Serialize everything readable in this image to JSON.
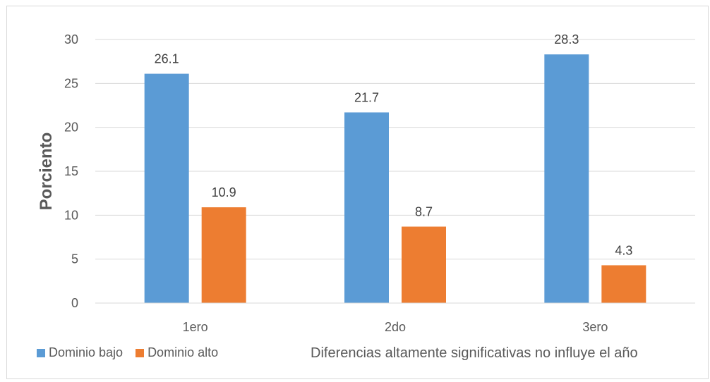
{
  "chart_data": {
    "type": "bar",
    "categories": [
      "1ero",
      "2do",
      "3ero"
    ],
    "series": [
      {
        "name": "Dominio bajo",
        "color": "#5b9bd5",
        "values": [
          26.1,
          21.7,
          28.3
        ]
      },
      {
        "name": "Dominio alto",
        "color": "#ed7d31",
        "values": [
          10.9,
          8.7,
          4.3
        ]
      }
    ],
    "ylabel": "Porciento",
    "ylim": [
      0,
      30
    ],
    "yticks": [
      0,
      5,
      10,
      15,
      20,
      25,
      30
    ],
    "grid": true,
    "legend_position": "bottom-left",
    "annotation": "Diferencias altamente significativas no influye el año"
  }
}
